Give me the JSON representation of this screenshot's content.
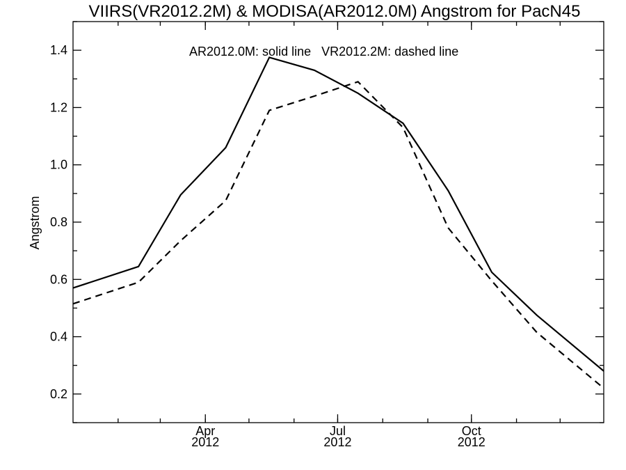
{
  "chart_data": {
    "type": "line",
    "title": "VIIRS(VR2012.2M) & MODISA(AR2012.0M)  Angstrom for PacN45",
    "annotation": "AR2012.0M: solid line   VR2012.2M: dashed line",
    "xlabel": "",
    "ylabel": "Angstrom",
    "xlim": [
      "2012-01-01",
      "2012-12-31"
    ],
    "ylim": [
      0.1,
      1.5
    ],
    "x_ticks": [
      {
        "label": "Apr",
        "sub": "2012",
        "x": "2012-04-01"
      },
      {
        "label": "Jul",
        "sub": "2012",
        "x": "2012-07-01"
      },
      {
        "label": "Oct",
        "sub": "2012",
        "x": "2012-10-01"
      }
    ],
    "y_ticks": [
      {
        "label": "0.2",
        "y": 0.2
      },
      {
        "label": "0.4",
        "y": 0.4
      },
      {
        "label": "0.6",
        "y": 0.6
      },
      {
        "label": "0.8",
        "y": 0.8
      },
      {
        "label": "1.0",
        "y": 1.0
      },
      {
        "label": "1.2",
        "y": 1.2
      },
      {
        "label": "1.4",
        "y": 1.4
      }
    ],
    "grid": false,
    "series": [
      {
        "style": "solid",
        "points": [
          {
            "x": "2012-01-01",
            "y": 0.57
          },
          {
            "x": "2012-02-15",
            "y": 0.645
          },
          {
            "x": "2012-03-15",
            "y": 0.895
          },
          {
            "x": "2012-04-15",
            "y": 1.06
          },
          {
            "x": "2012-05-15",
            "y": 1.375
          },
          {
            "x": "2012-06-15",
            "y": 1.33
          },
          {
            "x": "2012-07-15",
            "y": 1.25
          },
          {
            "x": "2012-08-15",
            "y": 1.145
          },
          {
            "x": "2012-09-15",
            "y": 0.91
          },
          {
            "x": "2012-10-15",
            "y": 0.625
          },
          {
            "x": "2012-11-15",
            "y": 0.475
          },
          {
            "x": "2012-12-31",
            "y": 0.28
          }
        ]
      },
      {
        "style": "dashed",
        "points": [
          {
            "x": "2012-01-01",
            "y": 0.515
          },
          {
            "x": "2012-02-15",
            "y": 0.59
          },
          {
            "x": "2012-03-15",
            "y": 0.735
          },
          {
            "x": "2012-04-15",
            "y": 0.875
          },
          {
            "x": "2012-05-15",
            "y": 1.19
          },
          {
            "x": "2012-06-15",
            "y": 1.24
          },
          {
            "x": "2012-07-15",
            "y": 1.29
          },
          {
            "x": "2012-08-15",
            "y": 1.13
          },
          {
            "x": "2012-09-15",
            "y": 0.78
          },
          {
            "x": "2012-10-15",
            "y": 0.595
          },
          {
            "x": "2012-11-15",
            "y": 0.415
          },
          {
            "x": "2012-12-31",
            "y": 0.22
          }
        ]
      }
    ]
  }
}
